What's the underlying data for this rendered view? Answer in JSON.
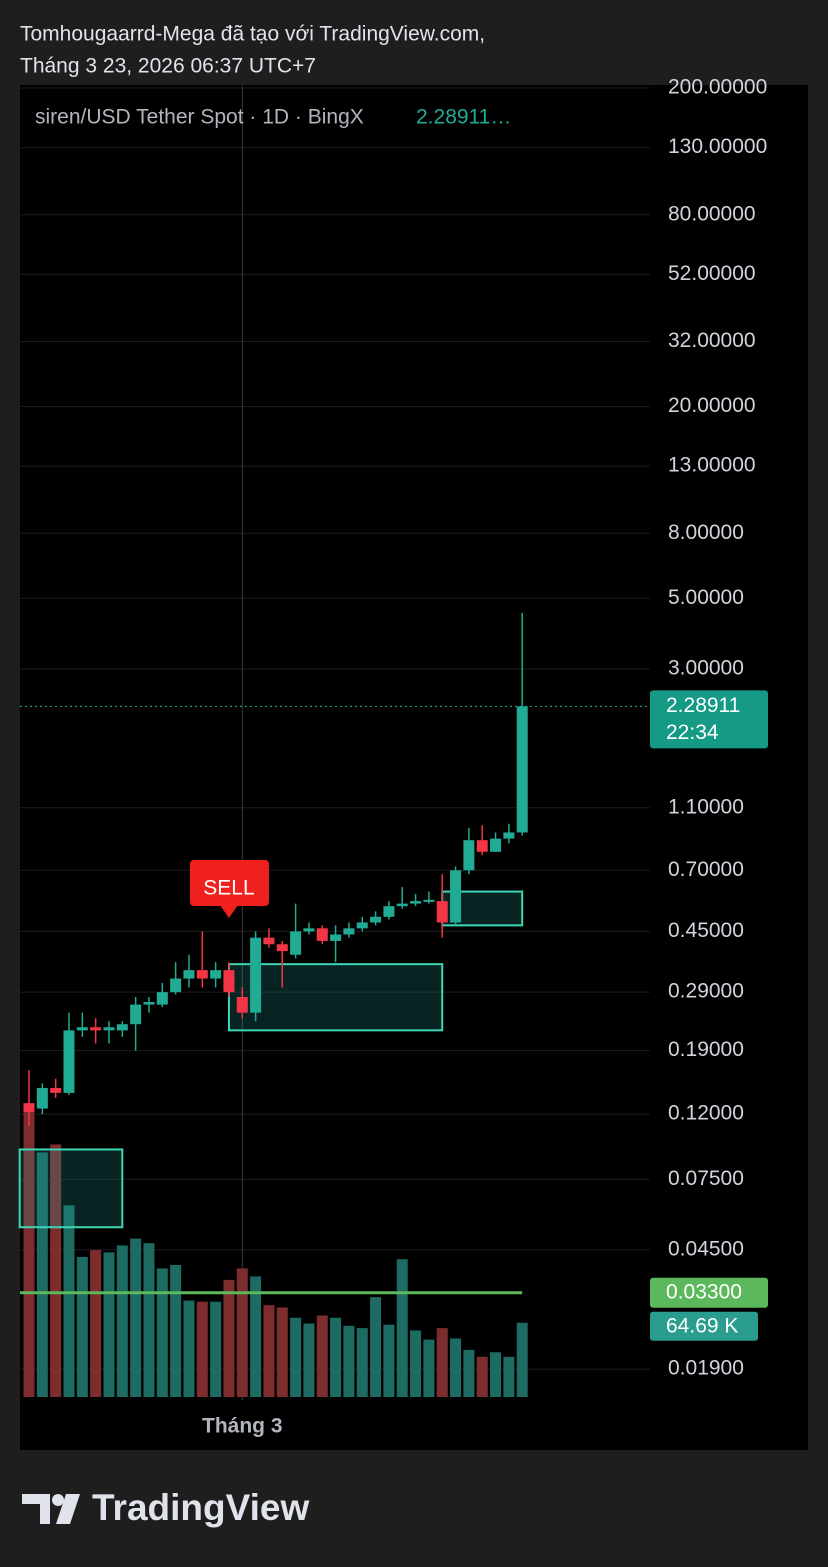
{
  "header": {
    "author_line": "Tomhougaarrd-Mega đã tạo với TradingView.com,",
    "date_line": "Tháng 3 23, 2026 06:37 UTC+7"
  },
  "footer": {
    "brand": "TradingView"
  },
  "chart_data": {
    "type": "candlestick",
    "title": "siren/USD Tether Spot · 1D · BingX",
    "legend_price": "2.28911…",
    "log_scale": true,
    "grid": true,
    "up_color": "#22ab94",
    "down_color": "#f23645",
    "categories": [
      null,
      null,
      null,
      null,
      null,
      null,
      null,
      null,
      null,
      null,
      null,
      null,
      null,
      null,
      null,
      null,
      "Tháng 3",
      null,
      null,
      null,
      null,
      null,
      null,
      null,
      null,
      null,
      null,
      null,
      null,
      null,
      null,
      null,
      null,
      null,
      null,
      null,
      null,
      null
    ],
    "open": [
      0.13,
      0.125,
      0.145,
      0.14,
      0.22,
      0.225,
      0.22,
      0.22,
      0.23,
      0.265,
      0.265,
      0.29,
      0.32,
      0.34,
      0.32,
      0.34,
      0.28,
      0.25,
      0.43,
      0.41,
      0.38,
      0.45,
      0.46,
      0.42,
      0.44,
      0.46,
      0.48,
      0.5,
      0.54,
      0.55,
      0.56,
      0.56,
      0.48,
      0.7,
      0.87,
      0.8,
      0.88,
      0.92
    ],
    "high": [
      0.165,
      0.15,
      0.155,
      0.25,
      0.25,
      0.24,
      0.235,
      0.235,
      0.28,
      0.28,
      0.31,
      0.36,
      0.38,
      0.45,
      0.36,
      0.36,
      0.3,
      0.45,
      0.46,
      0.42,
      0.55,
      0.48,
      0.47,
      0.47,
      0.48,
      0.5,
      0.52,
      0.56,
      0.62,
      0.59,
      0.6,
      0.68,
      0.72,
      0.95,
      0.97,
      0.92,
      0.98,
      4.5
    ],
    "low": [
      0.11,
      0.12,
      0.135,
      0.138,
      0.21,
      0.2,
      0.2,
      0.21,
      0.19,
      0.25,
      0.26,
      0.285,
      0.3,
      0.3,
      0.3,
      0.28,
      0.24,
      0.235,
      0.4,
      0.3,
      0.37,
      0.44,
      0.41,
      0.36,
      0.43,
      0.45,
      0.47,
      0.49,
      0.53,
      0.54,
      0.55,
      0.43,
      0.47,
      0.68,
      0.78,
      0.8,
      0.85,
      0.9
    ],
    "close": [
      0.122,
      0.145,
      0.14,
      0.22,
      0.225,
      0.22,
      0.225,
      0.23,
      0.265,
      0.27,
      0.29,
      0.32,
      0.34,
      0.32,
      0.34,
      0.29,
      0.25,
      0.43,
      0.41,
      0.39,
      0.45,
      0.46,
      0.42,
      0.44,
      0.46,
      0.48,
      0.5,
      0.54,
      0.55,
      0.56,
      0.565,
      0.48,
      0.7,
      0.87,
      0.8,
      0.88,
      0.92,
      2.28911
    ],
    "volume": {
      "values": [
        250,
        213,
        220,
        167,
        122,
        128,
        126,
        132,
        138,
        134,
        112,
        115,
        84,
        83,
        83,
        102,
        112,
        105,
        80,
        78,
        69,
        64,
        71,
        69,
        62,
        60,
        87,
        63,
        120,
        58,
        50,
        60,
        51,
        41,
        35,
        39,
        35,
        64.69
      ],
      "vlim": [
        0,
        260
      ],
      "up_color": "#1d6b62",
      "down_color": "#7e2d2f",
      "last_label": "64.69 K",
      "label_color": "#2a9d8f"
    },
    "ylim": [
      0.0152,
      204
    ],
    "yticks": [
      {
        "value": 200,
        "label": "200.00000"
      },
      {
        "value": 130,
        "label": "130.00000"
      },
      {
        "value": 80,
        "label": "80.00000"
      },
      {
        "value": 52,
        "label": "52.00000"
      },
      {
        "value": 32,
        "label": "32.00000"
      },
      {
        "value": 20,
        "label": "20.00000"
      },
      {
        "value": 13,
        "label": "13.00000"
      },
      {
        "value": 8,
        "label": "8.00000"
      },
      {
        "value": 5,
        "label": "5.00000"
      },
      {
        "value": 3,
        "label": "3.00000"
      },
      {
        "value": 1.1,
        "label": "1.10000"
      },
      {
        "value": 0.7,
        "label": "0.70000"
      },
      {
        "value": 0.45,
        "label": "0.45000"
      },
      {
        "value": 0.29,
        "label": "0.29000"
      },
      {
        "value": 0.19,
        "label": "0.19000"
      },
      {
        "value": 0.12,
        "label": "0.12000"
      },
      {
        "value": 0.075,
        "label": "0.07500"
      },
      {
        "value": 0.045,
        "label": "0.04500"
      },
      {
        "value": 0.019,
        "label": "0.01900"
      }
    ],
    "last_price": {
      "value": 2.28911,
      "label": "2.28911",
      "countdown": "22:34",
      "color": "#159a86"
    },
    "hline": {
      "value": 0.033,
      "label": "0.03300",
      "color": "#5cb85c"
    },
    "zones": [
      {
        "x": [
          -0.7,
          7
        ],
        "top": 0.093,
        "bottom": 0.053
      },
      {
        "x": [
          15,
          31
        ],
        "top": 0.355,
        "bottom": 0.22
      },
      {
        "x": [
          31,
          37
        ],
        "top": 0.6,
        "bottom": 0.47
      }
    ],
    "annotations": [
      {
        "text": "SELL",
        "index": 15,
        "color": "#f0201e"
      }
    ]
  }
}
